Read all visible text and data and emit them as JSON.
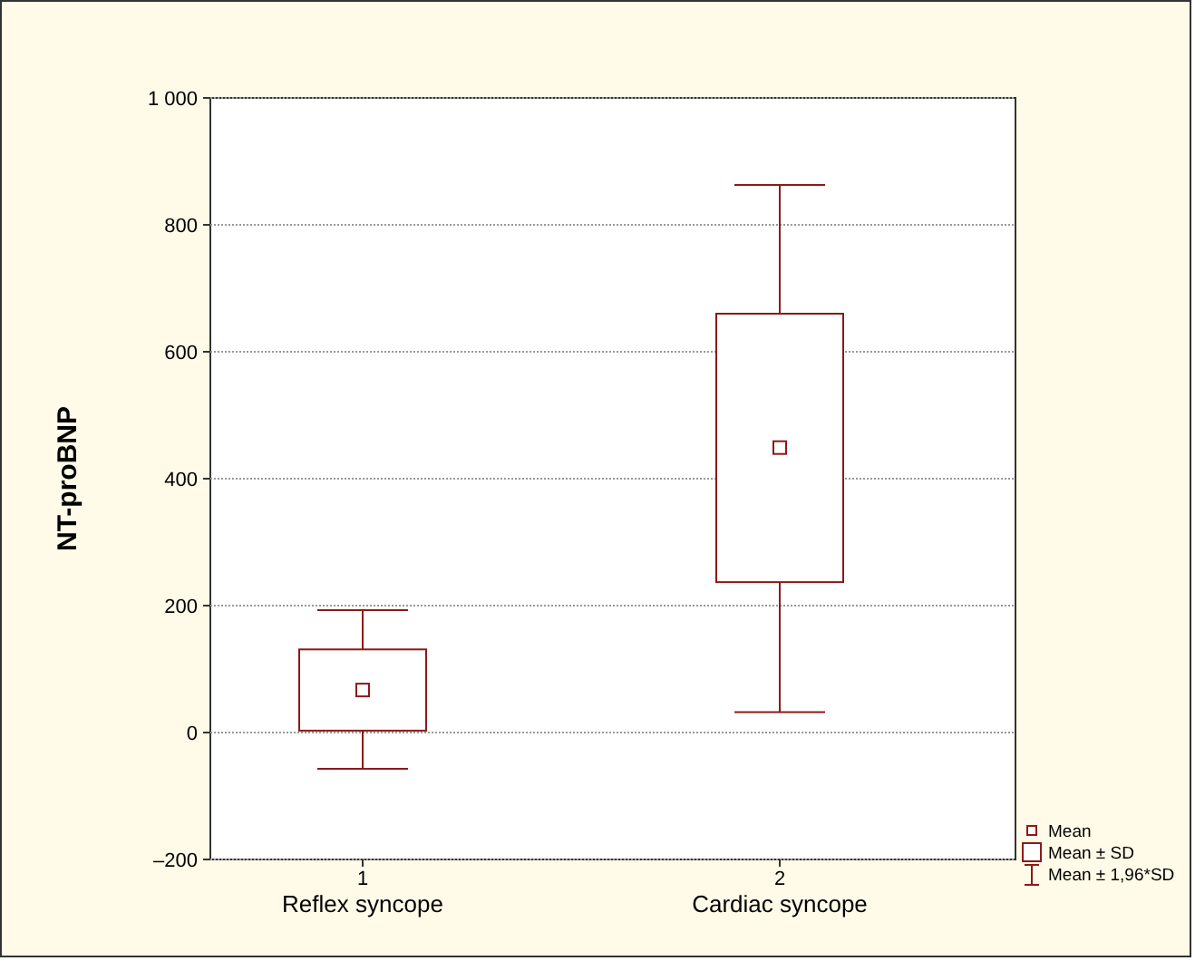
{
  "chart_data": {
    "type": "box",
    "ylabel": "NT-proBNP",
    "categories": [
      "1\nReflex syncope",
      "2\nCardiac syncope"
    ],
    "series": [
      {
        "name": "Mean ± SD",
        "color": "#8b1a1a",
        "boxes": [
          {
            "low": -57,
            "q1": 3,
            "median": 67,
            "q3": 131,
            "high": 193
          },
          {
            "low": 32,
            "q1": 237,
            "median": 449,
            "q3": 660,
            "high": 863
          }
        ]
      }
    ],
    "ylim": [
      -200,
      1000
    ],
    "yticks": [
      {
        "value": -200,
        "label": "–200"
      },
      0,
      200,
      400,
      600,
      800,
      {
        "value": 1000,
        "label": "1 000"
      }
    ],
    "grid": "y",
    "legend": "bottom right",
    "marker": "square",
    "annotations": [
      "Mean",
      "Mean ± 1,96*SD"
    ]
  }
}
